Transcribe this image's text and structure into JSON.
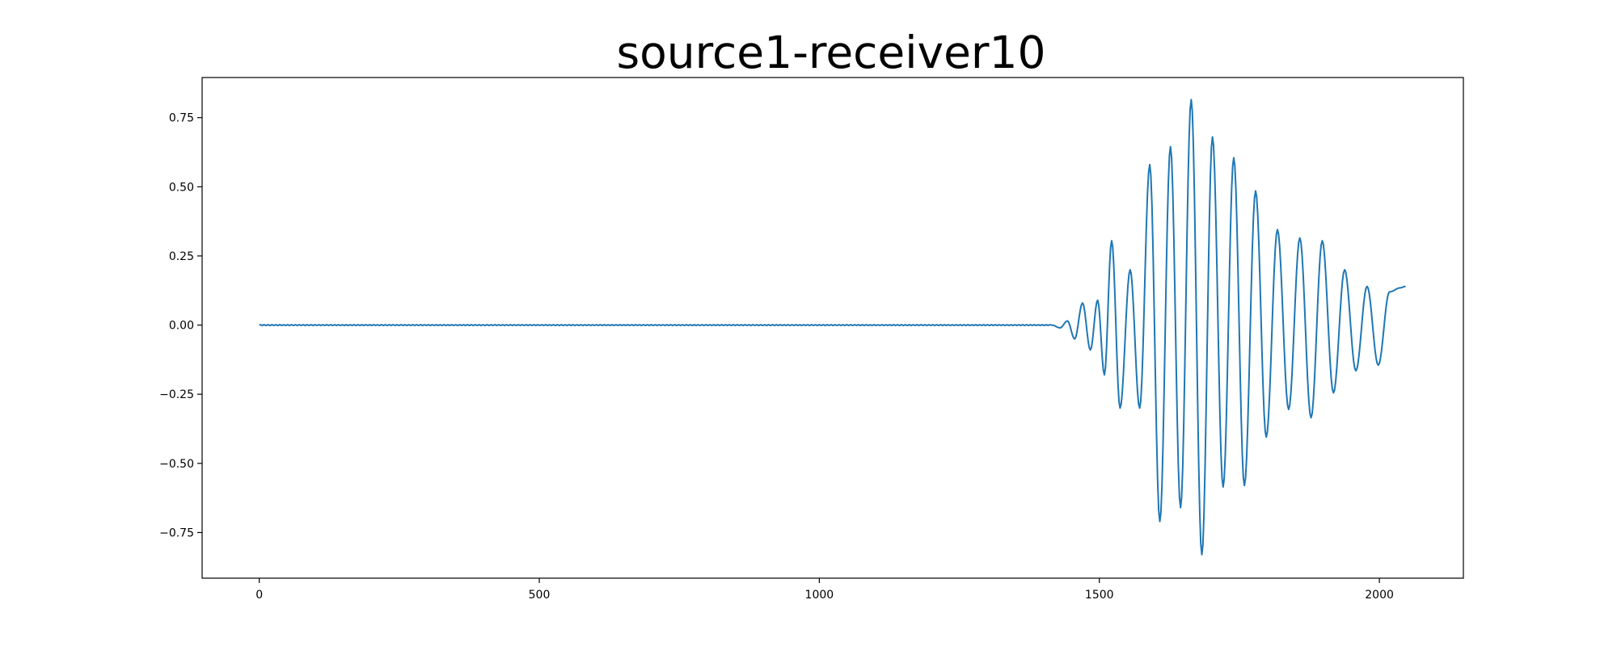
{
  "chart_data": {
    "type": "line",
    "title": "source1-receiver10",
    "xlabel": "",
    "ylabel": "",
    "xlim": [
      -102,
      2150
    ],
    "ylim": [
      -0.915,
      0.895
    ],
    "xticks": [
      0,
      500,
      1000,
      1500,
      2000
    ],
    "xtick_labels": [
      "0",
      "500",
      "1000",
      "1500",
      "2000"
    ],
    "yticks": [
      -0.75,
      -0.5,
      -0.25,
      0.0,
      0.25,
      0.5,
      0.75
    ],
    "ytick_labels": [
      "−0.75",
      "−0.50",
      "−0.25",
      "0.00",
      "0.25",
      "0.50",
      "0.75"
    ],
    "grid": false,
    "series": [
      {
        "color": "#1f77b4",
        "x": [
          0,
          1400,
          1415,
          1430,
          1443,
          1456,
          1470,
          1484,
          1497,
          1509,
          1522,
          1537,
          1555,
          1572,
          1590,
          1608,
          1627,
          1645,
          1664,
          1683,
          1702,
          1721,
          1740,
          1759,
          1779,
          1798,
          1818,
          1838,
          1858,
          1878,
          1898,
          1918,
          1938,
          1958,
          1978,
          1998,
          2018,
          2038,
          2047
        ],
        "y": [
          0.0,
          0.0,
          0.0,
          -0.01,
          0.015,
          -0.05,
          0.08,
          -0.09,
          0.09,
          -0.18,
          0.305,
          -0.3,
          0.2,
          -0.3,
          0.58,
          -0.71,
          0.645,
          -0.66,
          0.815,
          -0.83,
          0.68,
          -0.585,
          0.605,
          -0.58,
          0.485,
          -0.405,
          0.345,
          -0.305,
          0.315,
          -0.335,
          0.305,
          -0.245,
          0.2,
          -0.165,
          0.14,
          -0.145,
          0.12,
          0.135,
          0.14
        ]
      }
    ]
  }
}
